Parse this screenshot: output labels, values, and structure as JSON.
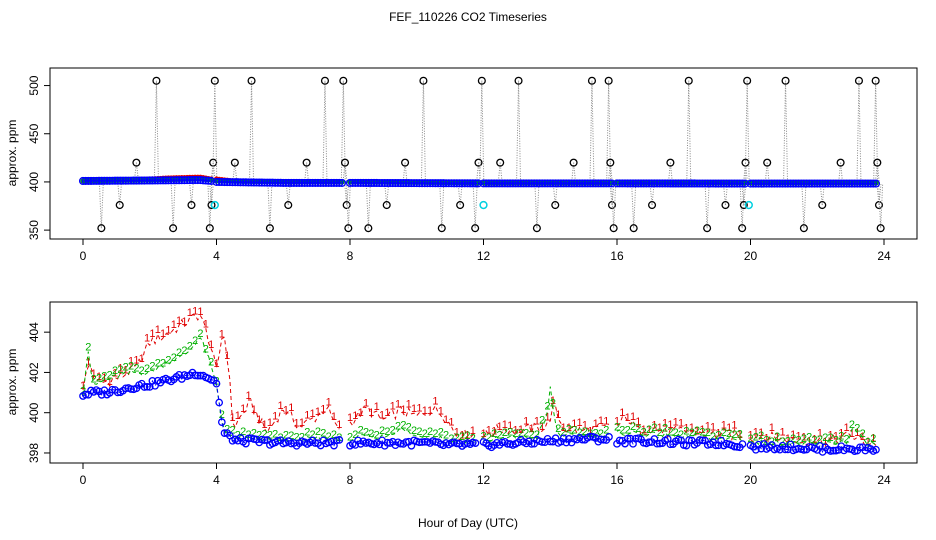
{
  "title": "FEF_110226  CO2 Timeseries",
  "xlabel": "Hour of Day (UTC)",
  "colors": {
    "axis": "#000000",
    "spike_line": "#888888",
    "spike_point": "#000000",
    "series1": "#e00000",
    "series2": "#00b000",
    "series3": "#0000ff",
    "flag": "#00d0e0"
  },
  "chart_data": [
    {
      "type": "line",
      "title": "",
      "xlabel": "",
      "ylabel": "approx. ppm",
      "xlim": [
        0,
        24
      ],
      "ylim": [
        347,
        512
      ],
      "xticks": [
        0,
        4,
        8,
        12,
        16,
        20,
        24
      ],
      "yticks": [
        350,
        400,
        450,
        500
      ],
      "gaps": [
        [
          3.85,
          4.0
        ],
        [
          7.8,
          8.0
        ],
        [
          11.85,
          12.0
        ],
        [
          15.85,
          16.0
        ],
        [
          19.85,
          20.0
        ]
      ],
      "series": [
        {
          "name": "1",
          "legend_glyph": "1",
          "color": "#e00000",
          "x": [
            0,
            2,
            2.5,
            3.5,
            3.85,
            4.0,
            4.5,
            6,
            7.8,
            8.0,
            10,
            11.85,
            12.0,
            14,
            15.85,
            16.0,
            18,
            19.85,
            20.0,
            22,
            23.8
          ],
          "y": [
            401,
            403,
            404,
            405,
            403,
            403,
            401,
            400,
            400,
            400,
            400,
            399,
            399,
            399,
            399,
            399,
            399,
            399,
            399,
            399,
            399
          ]
        },
        {
          "name": "2",
          "legend_glyph": "2",
          "color": "#00b000",
          "x": [
            0,
            2,
            3.5,
            3.85,
            4.0,
            6,
            8.0,
            12.0,
            14,
            16.0,
            20.0,
            23.8
          ],
          "y": [
            401,
            402,
            403,
            402,
            401,
            400,
            400,
            399,
            399,
            399,
            399,
            399
          ]
        },
        {
          "name": "3",
          "legend_glyph": "o",
          "color": "#0000ff",
          "x": [
            0,
            2,
            3.5,
            3.85,
            4.0,
            6,
            8.0,
            12.0,
            16.0,
            20.0,
            23.8
          ],
          "y": [
            401,
            401.5,
            402,
            401,
            400,
            399,
            399,
            398.5,
            398.5,
            398.3,
            398.3
          ]
        }
      ],
      "spikes": [
        {
          "x": 0.55,
          "y": 352
        },
        {
          "x": 1.1,
          "y": 376
        },
        {
          "x": 1.6,
          "y": 420
        },
        {
          "x": 2.2,
          "y": 505
        },
        {
          "x": 2.7,
          "y": 352
        },
        {
          "x": 3.25,
          "y": 376
        },
        {
          "x": 3.8,
          "y": 352
        },
        {
          "x": 3.85,
          "y": 376
        },
        {
          "x": 3.9,
          "y": 420
        },
        {
          "x": 3.95,
          "y": 505
        },
        {
          "x": 4.55,
          "y": 420
        },
        {
          "x": 5.05,
          "y": 505
        },
        {
          "x": 5.6,
          "y": 352
        },
        {
          "x": 6.15,
          "y": 376
        },
        {
          "x": 6.7,
          "y": 420
        },
        {
          "x": 7.25,
          "y": 505
        },
        {
          "x": 7.8,
          "y": 505
        },
        {
          "x": 7.85,
          "y": 420
        },
        {
          "x": 7.9,
          "y": 376
        },
        {
          "x": 7.95,
          "y": 352
        },
        {
          "x": 8.55,
          "y": 352
        },
        {
          "x": 9.1,
          "y": 376
        },
        {
          "x": 9.65,
          "y": 420
        },
        {
          "x": 10.2,
          "y": 505
        },
        {
          "x": 10.75,
          "y": 352
        },
        {
          "x": 11.3,
          "y": 376
        },
        {
          "x": 11.75,
          "y": 352
        },
        {
          "x": 11.85,
          "y": 420
        },
        {
          "x": 11.95,
          "y": 505
        },
        {
          "x": 12.5,
          "y": 420
        },
        {
          "x": 13.05,
          "y": 505
        },
        {
          "x": 13.6,
          "y": 352
        },
        {
          "x": 14.15,
          "y": 376
        },
        {
          "x": 14.7,
          "y": 420
        },
        {
          "x": 15.25,
          "y": 505
        },
        {
          "x": 15.75,
          "y": 505
        },
        {
          "x": 15.8,
          "y": 420
        },
        {
          "x": 15.85,
          "y": 376
        },
        {
          "x": 15.9,
          "y": 352
        },
        {
          "x": 16.5,
          "y": 352
        },
        {
          "x": 17.05,
          "y": 376
        },
        {
          "x": 17.6,
          "y": 420
        },
        {
          "x": 18.15,
          "y": 505
        },
        {
          "x": 18.7,
          "y": 352
        },
        {
          "x": 19.25,
          "y": 376
        },
        {
          "x": 19.75,
          "y": 352
        },
        {
          "x": 19.8,
          "y": 376
        },
        {
          "x": 19.85,
          "y": 420
        },
        {
          "x": 19.9,
          "y": 505
        },
        {
          "x": 20.5,
          "y": 420
        },
        {
          "x": 21.05,
          "y": 505
        },
        {
          "x": 21.6,
          "y": 352
        },
        {
          "x": 22.15,
          "y": 376
        },
        {
          "x": 22.7,
          "y": 420
        },
        {
          "x": 23.25,
          "y": 505
        },
        {
          "x": 23.75,
          "y": 505
        },
        {
          "x": 23.8,
          "y": 420
        },
        {
          "x": 23.85,
          "y": 376
        },
        {
          "x": 23.9,
          "y": 352
        }
      ],
      "flagged": [
        {
          "x": 3.95,
          "y": 376
        },
        {
          "x": 12.0,
          "y": 376
        },
        {
          "x": 19.95,
          "y": 376
        }
      ]
    },
    {
      "type": "line",
      "title": "",
      "xlabel": "Hour of Day (UTC)",
      "ylabel": "approx. ppm",
      "xlim": [
        0,
        24
      ],
      "ylim": [
        397.8,
        405.2
      ],
      "xticks": [
        0,
        4,
        8,
        12,
        16,
        20,
        24
      ],
      "yticks": [
        398,
        400,
        402,
        404
      ],
      "gaps": [
        [
          7.75,
          8.0
        ],
        [
          11.8,
          12.0
        ],
        [
          15.8,
          16.0
        ],
        [
          19.8,
          20.0
        ]
      ],
      "series": [
        {
          "name": "1",
          "legend_glyph": "1",
          "color": "#e00000",
          "x": [
            0,
            0.2,
            0.4,
            1.0,
            1.6,
            2.0,
            2.4,
            2.8,
            3.1,
            3.5,
            3.8,
            4.0,
            4.2,
            4.35,
            4.5,
            5.0,
            5.5,
            6.0,
            6.5,
            7.0,
            7.3,
            7.6,
            8.0,
            8.5,
            9.0,
            9.5,
            10.0,
            10.5,
            10.8,
            11.2,
            11.6,
            12.0,
            12.5,
            13.0,
            13.5,
            13.9,
            14.1,
            14.4,
            15.0,
            15.5,
            16.0,
            16.3,
            16.6,
            17.0,
            17.5,
            18.0,
            18.5,
            19.0,
            19.5,
            20.0,
            20.5,
            21.0,
            21.5,
            22.0,
            22.5,
            23.0,
            23.4,
            23.8
          ],
          "y": [
            401.3,
            402.5,
            401.4,
            401.7,
            402.2,
            403.5,
            403.8,
            404.2,
            404.5,
            404.9,
            403.5,
            402.0,
            404.2,
            402.5,
            399.2,
            400.5,
            399.0,
            400.2,
            399.3,
            399.8,
            400.3,
            399.2,
            399.5,
            400.2,
            399.6,
            400.1,
            399.8,
            400.2,
            399.9,
            398.9,
            398.9,
            398.8,
            399.2,
            399.1,
            399.2,
            399.3,
            400.3,
            399.2,
            399.1,
            399.2,
            399.3,
            399.8,
            399.1,
            399.2,
            399.0,
            399.1,
            399.0,
            398.9,
            398.9,
            398.8,
            398.8,
            398.7,
            398.6,
            398.6,
            398.6,
            398.9,
            398.5,
            398.5
          ]
        },
        {
          "name": "2",
          "legend_glyph": "2",
          "color": "#00b000",
          "x": [
            0,
            0.15,
            0.3,
            0.5,
            1.0,
            1.5,
            2.0,
            2.5,
            2.9,
            3.2,
            3.5,
            3.8,
            4.0,
            4.2,
            4.4,
            5.0,
            6.0,
            7.0,
            7.6,
            8.0,
            8.5,
            9.0,
            9.5,
            10.0,
            10.5,
            11.0,
            11.6,
            12.0,
            12.5,
            13.0,
            13.6,
            13.9,
            14.0,
            14.2,
            14.5,
            15.0,
            15.6,
            16.0,
            16.5,
            17.0,
            18.0,
            19.0,
            19.6,
            20.0,
            21.0,
            22.0,
            22.5,
            22.9,
            23.1,
            23.4,
            23.8
          ],
          "y": [
            401.0,
            403.2,
            401.3,
            401.5,
            401.8,
            402.0,
            402.0,
            402.5,
            402.7,
            403.1,
            403.8,
            402.5,
            401.3,
            399.3,
            398.8,
            398.7,
            398.6,
            398.7,
            398.7,
            398.7,
            398.8,
            398.8,
            399.2,
            398.8,
            398.9,
            398.6,
            398.6,
            398.6,
            398.7,
            398.8,
            398.8,
            399.8,
            401.2,
            399.0,
            398.8,
            398.9,
            398.9,
            399.0,
            399.0,
            398.9,
            398.8,
            398.7,
            398.7,
            398.5,
            398.5,
            398.4,
            398.5,
            398.6,
            399.3,
            398.5,
            398.4
          ]
        },
        {
          "name": "3",
          "legend_glyph": "o",
          "color": "#0000ff",
          "x": [
            0,
            0.3,
            0.6,
            1.0,
            1.5,
            2.0,
            2.5,
            3.0,
            3.4,
            3.7,
            4.0,
            4.2,
            4.4,
            4.6,
            5.0,
            6.0,
            7.0,
            7.7,
            8.0,
            9.0,
            10.0,
            11.0,
            11.7,
            12.0,
            13.0,
            14.0,
            15.0,
            15.7,
            16.0,
            17.0,
            18.0,
            19.0,
            19.7,
            20.0,
            21.0,
            22.0,
            23.0,
            23.8
          ],
          "y": [
            400.9,
            401.0,
            401.0,
            401.1,
            401.3,
            401.4,
            401.6,
            401.8,
            402.0,
            401.8,
            401.5,
            399.0,
            398.8,
            398.6,
            398.6,
            398.5,
            398.5,
            398.5,
            398.5,
            398.5,
            398.5,
            398.4,
            398.4,
            398.4,
            398.5,
            398.6,
            398.7,
            398.7,
            398.6,
            398.6,
            398.5,
            398.5,
            398.4,
            398.3,
            398.3,
            398.2,
            398.2,
            398.2
          ]
        }
      ]
    }
  ]
}
